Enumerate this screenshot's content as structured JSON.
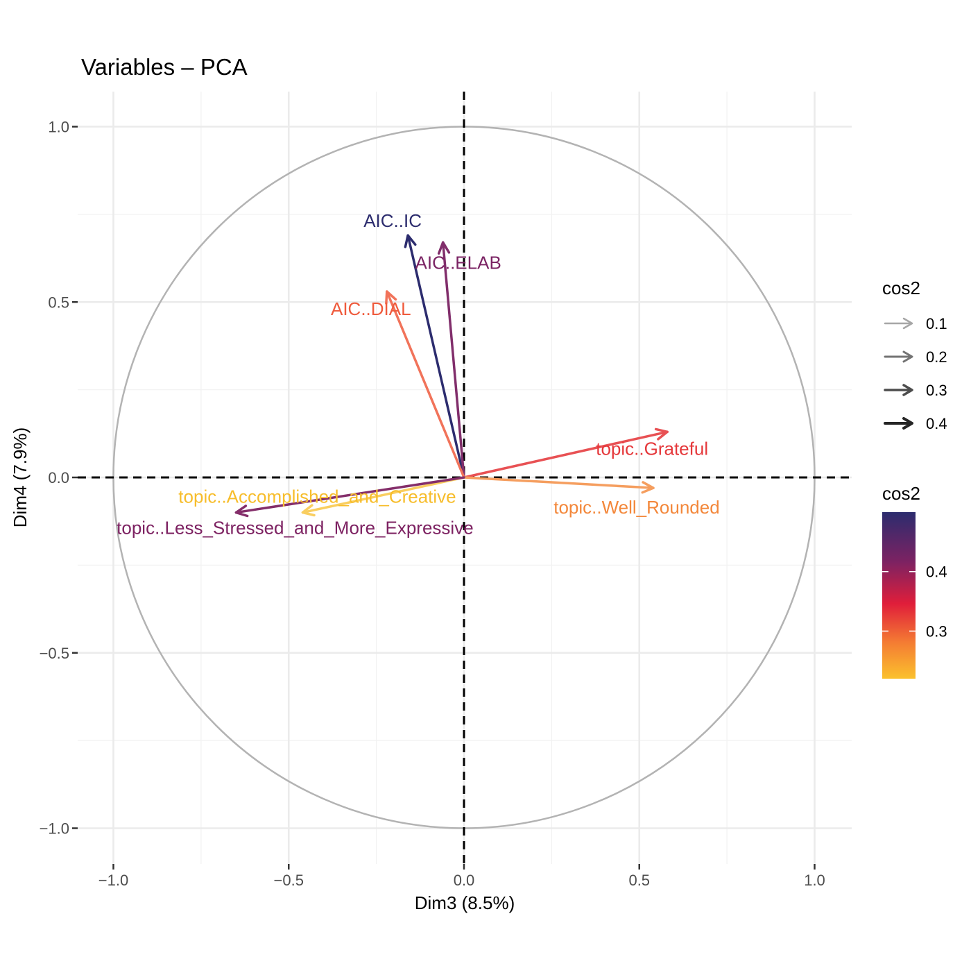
{
  "chart_data": {
    "type": "scatter",
    "title": "Variables – PCA",
    "xlabel": "Dim3 (8.5%)",
    "ylabel": "Dim4 (7.9%)",
    "xlim": [
      -1.1,
      1.1
    ],
    "ylim": [
      -1.1,
      1.1
    ],
    "x_ticks": [
      -1.0,
      -0.5,
      0.0,
      0.5,
      1.0
    ],
    "y_ticks": [
      -1.0,
      -0.5,
      0.0,
      0.5,
      1.0
    ],
    "x_tick_labels": [
      "−1.0",
      "−0.5",
      "0.0",
      "0.5",
      "1.0"
    ],
    "y_tick_labels": [
      "−1.0",
      "−0.5",
      "0.0",
      "0.5",
      "1.0"
    ],
    "grid": true,
    "unit_circle": true,
    "series": [
      {
        "name": "AIC..IC",
        "x": -0.16,
        "y": 0.69,
        "cos2": 0.5,
        "color": "#2c2c6e"
      },
      {
        "name": "AIC..ELAB",
        "x": -0.06,
        "y": 0.67,
        "cos2": 0.45,
        "color": "#7b2464"
      },
      {
        "name": "AIC..DIAL",
        "x": -0.22,
        "y": 0.53,
        "cos2": 0.33,
        "color": "#ef5a3c"
      },
      {
        "name": "topic..Grateful",
        "x": 0.58,
        "y": 0.13,
        "cos2": 0.36,
        "color": "#e5383b"
      },
      {
        "name": "topic..Well_Rounded",
        "x": 0.54,
        "y": -0.03,
        "cos2": 0.29,
        "color": "#f3873a"
      },
      {
        "name": "topic..Accomplished_and_Creative",
        "x": -0.46,
        "y": -0.1,
        "cos2": 0.22,
        "color": "#f7bd2b"
      },
      {
        "name": "topic..Less_Stressed_and_More_Expressive",
        "x": -0.65,
        "y": -0.1,
        "cos2": 0.44,
        "color": "#7d2262"
      }
    ],
    "legend": {
      "position": "right",
      "size_legend": {
        "title": "cos2",
        "values": [
          "0.1",
          "0.2",
          "0.3",
          "0.4"
        ]
      },
      "color_legend": {
        "title": "cos2",
        "tick_labels": [
          "0.4",
          "0.3"
        ],
        "tick_values": [
          0.4,
          0.3
        ],
        "range": [
          0.22,
          0.5
        ],
        "colors": [
          "#2c2c6e",
          "#7d2262",
          "#e01e3a",
          "#f47b33",
          "#fbc12d"
        ]
      }
    }
  }
}
